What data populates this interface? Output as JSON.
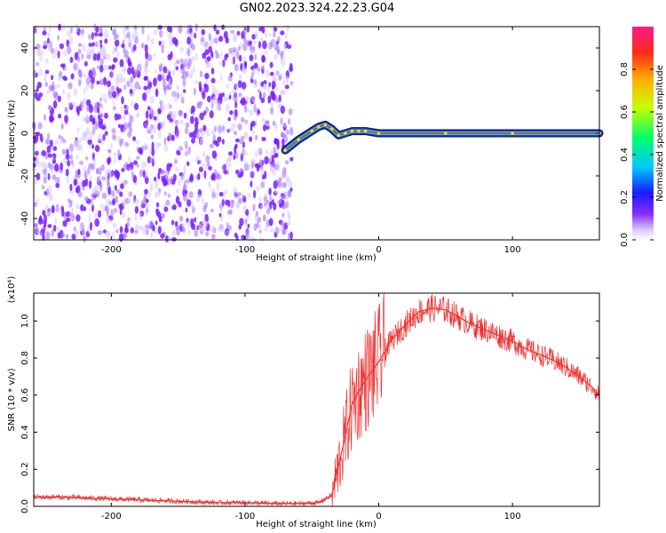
{
  "title": "GN02.2023.324.22.23.G04",
  "chart_data": [
    {
      "type": "heatmap",
      "xlabel": "Height of straight line (km)",
      "ylabel": "Frequency (Hz)",
      "xlim": [
        -258,
        165
      ],
      "ylim": [
        -50,
        50
      ],
      "xticks": [
        "-200",
        "-100",
        "0",
        "100"
      ],
      "xtick_values": [
        -200,
        -100,
        0,
        100
      ],
      "yticks": [
        "-40",
        "-20",
        "0",
        "20",
        "40"
      ],
      "ytick_values": [
        -40,
        -20,
        0,
        20,
        40
      ],
      "noise_region_x": [
        -258,
        -65
      ],
      "signal_track": [
        {
          "x": -70,
          "y": -8
        },
        {
          "x": -60,
          "y": -3
        },
        {
          "x": -50,
          "y": 1
        },
        {
          "x": -45,
          "y": 3
        },
        {
          "x": -40,
          "y": 4
        },
        {
          "x": -35,
          "y": 2
        },
        {
          "x": -30,
          "y": -1
        },
        {
          "x": -25,
          "y": 0
        },
        {
          "x": -20,
          "y": 1
        },
        {
          "x": -15,
          "y": 1
        },
        {
          "x": -10,
          "y": 1
        },
        {
          "x": 0,
          "y": 0
        },
        {
          "x": 50,
          "y": 0
        },
        {
          "x": 100,
          "y": 0
        },
        {
          "x": 165,
          "y": 0
        }
      ],
      "colorbar": {
        "label": "Normalized spectral amplitude",
        "ticks": [
          "0.0",
          "0.2",
          "0.4",
          "0.6",
          "0.8"
        ],
        "tick_values": [
          0.0,
          0.2,
          0.4,
          0.6,
          0.8
        ],
        "range": [
          0,
          1
        ]
      },
      "colors": {
        "noise": "#7a1fff",
        "track_outer": "#1f2dff",
        "track_mid": "#19e68a",
        "track_center": "#e8223a"
      }
    },
    {
      "type": "line",
      "xlabel": "Height of straight line (km)",
      "ylabel": "SNR (10 * v/v)",
      "multiplier": "(x10⁴)",
      "xlim": [
        -258,
        165
      ],
      "ylim": [
        0,
        1.15
      ],
      "xticks": [
        "-200",
        "-100",
        "0",
        "100"
      ],
      "xtick_values": [
        -200,
        -100,
        0,
        100
      ],
      "yticks": [
        "0.0",
        "0.2",
        "0.4",
        "0.6",
        "0.8",
        "1.0"
      ],
      "ytick_values": [
        0.0,
        0.2,
        0.4,
        0.6,
        0.8,
        1.0
      ],
      "series": [
        {
          "color": "#ee3030",
          "x": [
            -258,
            -240,
            -220,
            -200,
            -180,
            -160,
            -140,
            -120,
            -100,
            -80,
            -60,
            -45,
            -35,
            -30,
            -25,
            -20,
            -15,
            -10,
            0,
            10,
            20,
            30,
            40,
            50,
            60,
            70,
            80,
            90,
            100,
            110,
            120,
            130,
            140,
            150,
            160,
            165
          ],
          "y": [
            0.05,
            0.05,
            0.045,
            0.04,
            0.035,
            0.03,
            0.025,
            0.02,
            0.02,
            0.015,
            0.015,
            0.02,
            0.06,
            0.22,
            0.38,
            0.55,
            0.62,
            0.68,
            0.78,
            0.9,
            0.98,
            1.05,
            1.07,
            1.06,
            1.02,
            0.98,
            0.95,
            0.92,
            0.89,
            0.85,
            0.82,
            0.79,
            0.75,
            0.7,
            0.64,
            0.6
          ]
        }
      ]
    }
  ]
}
